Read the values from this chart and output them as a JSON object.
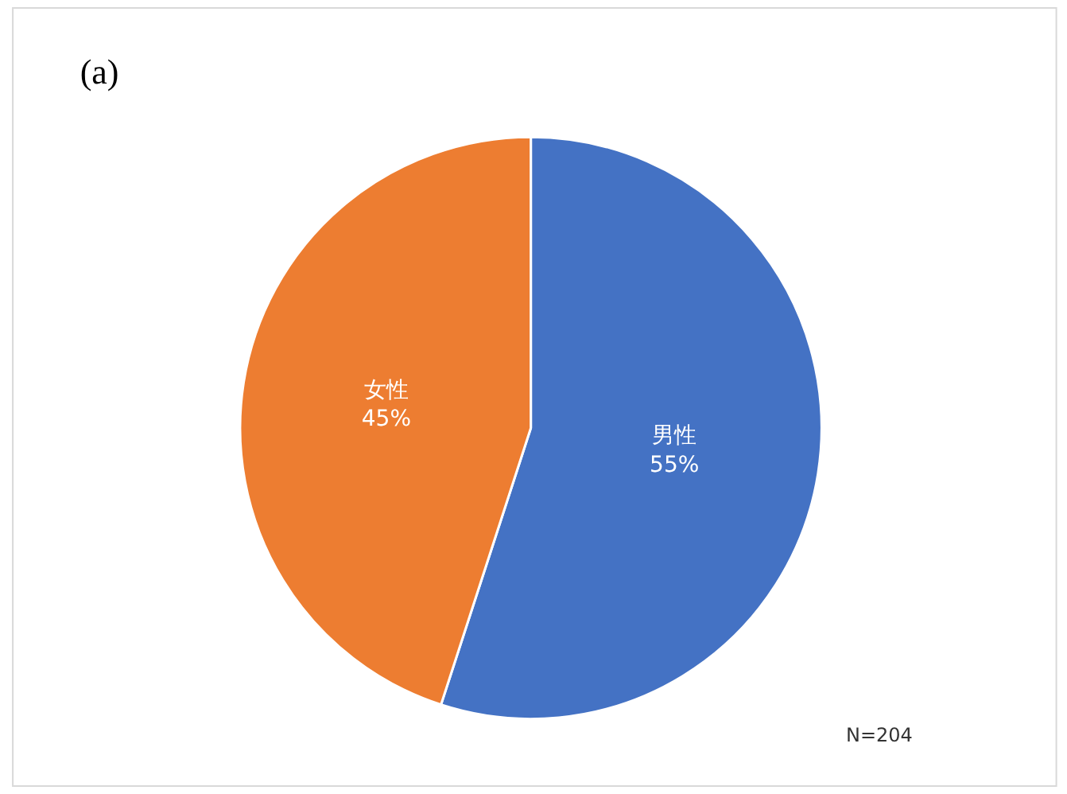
{
  "chart_data": {
    "type": "pie",
    "title": "(a)",
    "categories": [
      "男性",
      "女性"
    ],
    "values": [
      55,
      45
    ],
    "value_labels": [
      "55%",
      "45%"
    ],
    "colors": [
      "#4472c4",
      "#ed7d31"
    ],
    "legend": false,
    "annotations": [
      "N=204"
    ]
  }
}
